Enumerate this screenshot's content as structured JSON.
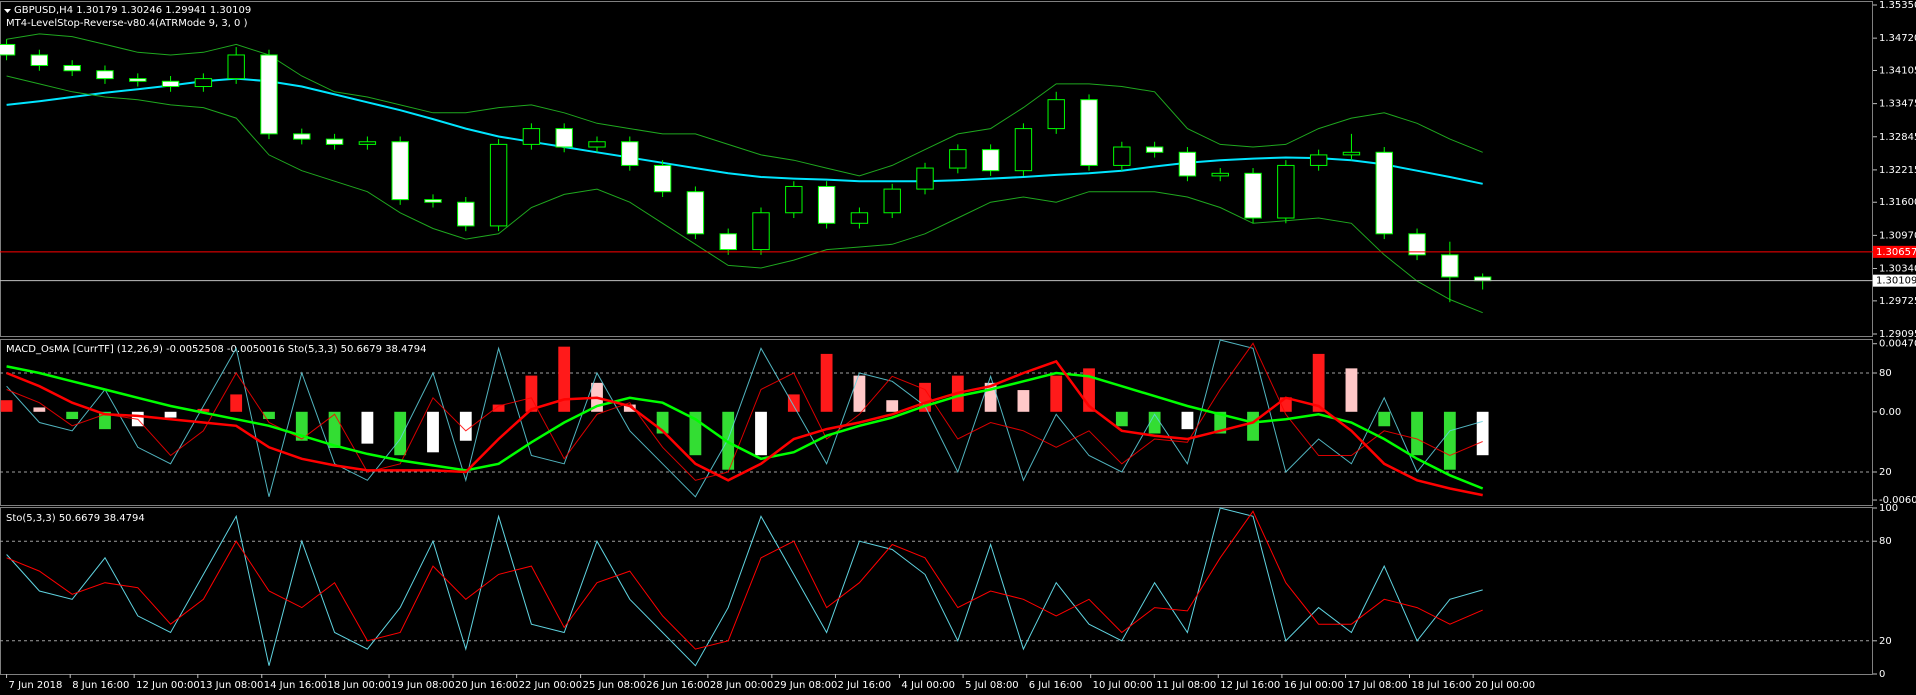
{
  "chart_data": [
    {
      "type": "candlestick",
      "title": "GBPUSD,H4  1.30179 1.30246 1.29941 1.30109",
      "subtitle": "MT4-LevelStop-Reverse-v80.4(ATRMode 9, 3, 0 )",
      "x": [
        0,
        1,
        2,
        3,
        4,
        5,
        6,
        7,
        8,
        9,
        10,
        11,
        12,
        13,
        14,
        15,
        16,
        17,
        18,
        19,
        20,
        21,
        22,
        23,
        24,
        25,
        26,
        27,
        28,
        29,
        30,
        31,
        32,
        33,
        34,
        35,
        36,
        37,
        38,
        39,
        40,
        41,
        42,
        43,
        44,
        45
      ],
      "open": [
        1.346,
        1.344,
        1.342,
        1.341,
        1.3395,
        1.339,
        1.338,
        1.3395,
        1.344,
        1.329,
        1.328,
        1.327,
        1.3275,
        1.3165,
        1.316,
        1.3115,
        1.327,
        1.33,
        1.3265,
        1.3275,
        1.323,
        1.318,
        1.31,
        1.307,
        1.314,
        1.319,
        1.312,
        1.314,
        1.3185,
        1.3225,
        1.326,
        1.322,
        1.33,
        1.3355,
        1.323,
        1.3265,
        1.3255,
        1.321,
        1.3215,
        1.313,
        1.323,
        1.325,
        1.3255,
        1.31,
        1.306,
        1.30179
      ],
      "high": [
        1.347,
        1.345,
        1.343,
        1.342,
        1.3405,
        1.34,
        1.3405,
        1.3455,
        1.345,
        1.33,
        1.329,
        1.3285,
        1.3285,
        1.3175,
        1.317,
        1.328,
        1.331,
        1.331,
        1.3285,
        1.3285,
        1.324,
        1.319,
        1.311,
        1.315,
        1.32,
        1.32,
        1.315,
        1.3195,
        1.3235,
        1.327,
        1.327,
        1.331,
        1.337,
        1.3365,
        1.3275,
        1.3275,
        1.3265,
        1.3225,
        1.3225,
        1.324,
        1.326,
        1.329,
        1.3265,
        1.311,
        1.3085,
        1.30246
      ],
      "low": [
        1.343,
        1.341,
        1.34,
        1.3385,
        1.338,
        1.337,
        1.337,
        1.3385,
        1.328,
        1.327,
        1.326,
        1.326,
        1.3155,
        1.315,
        1.3105,
        1.3105,
        1.326,
        1.3255,
        1.3255,
        1.322,
        1.317,
        1.309,
        1.306,
        1.306,
        1.313,
        1.311,
        1.311,
        1.313,
        1.3175,
        1.3215,
        1.321,
        1.321,
        1.329,
        1.322,
        1.322,
        1.3245,
        1.32,
        1.32,
        1.312,
        1.312,
        1.322,
        1.324,
        1.309,
        1.305,
        1.297,
        1.29941
      ],
      "close": [
        1.344,
        1.342,
        1.341,
        1.3395,
        1.339,
        1.338,
        1.3395,
        1.344,
        1.329,
        1.328,
        1.327,
        1.3275,
        1.3165,
        1.316,
        1.3115,
        1.327,
        1.33,
        1.3265,
        1.3275,
        1.323,
        1.318,
        1.31,
        1.307,
        1.314,
        1.319,
        1.312,
        1.314,
        1.3185,
        1.3225,
        1.326,
        1.322,
        1.33,
        1.3355,
        1.323,
        1.3265,
        1.3255,
        1.321,
        1.3215,
        1.313,
        1.323,
        1.325,
        1.3255,
        1.31,
        1.306,
        1.30179,
        1.30109
      ],
      "up_fill": "#000000",
      "down_fill": "#ffffff",
      "candle_color": "#00ff00",
      "series": [
        {
          "color": "#00e5ff",
          "width": 2,
          "values": [
            1.3345,
            1.3352,
            1.336,
            1.3368,
            1.3375,
            1.3382,
            1.339,
            1.3395,
            1.339,
            1.338,
            1.3365,
            1.335,
            1.3335,
            1.3318,
            1.33,
            1.3285,
            1.3275,
            1.3265,
            1.3255,
            1.3245,
            1.3235,
            1.3225,
            1.3215,
            1.3208,
            1.3205,
            1.3203,
            1.32,
            1.32,
            1.32,
            1.3202,
            1.3205,
            1.3208,
            1.3212,
            1.3215,
            1.322,
            1.3228,
            1.3235,
            1.324,
            1.3243,
            1.3245,
            1.3244,
            1.324,
            1.3232,
            1.322,
            1.3208,
            1.3195
          ]
        },
        {
          "color": "#1fa81f",
          "width": 1,
          "values": [
            1.347,
            1.348,
            1.3475,
            1.346,
            1.3445,
            1.344,
            1.3445,
            1.346,
            1.344,
            1.34,
            1.337,
            1.336,
            1.3345,
            1.333,
            1.333,
            1.334,
            1.3345,
            1.333,
            1.331,
            1.33,
            1.329,
            1.329,
            1.327,
            1.325,
            1.324,
            1.3225,
            1.321,
            1.323,
            1.326,
            1.329,
            1.33,
            1.334,
            1.3385,
            1.3385,
            1.338,
            1.337,
            1.33,
            1.327,
            1.3265,
            1.327,
            1.33,
            1.332,
            1.333,
            1.331,
            1.328,
            1.3255
          ]
        },
        {
          "color": "#1fa81f",
          "width": 1,
          "values": [
            1.34,
            1.3385,
            1.337,
            1.336,
            1.3355,
            1.3345,
            1.334,
            1.332,
            1.325,
            1.322,
            1.32,
            1.318,
            1.314,
            1.311,
            1.309,
            1.31,
            1.315,
            1.3175,
            1.3185,
            1.316,
            1.312,
            1.308,
            1.304,
            1.3035,
            1.305,
            1.307,
            1.3075,
            1.308,
            1.31,
            1.313,
            1.316,
            1.317,
            1.316,
            1.318,
            1.318,
            1.318,
            1.317,
            1.315,
            1.312,
            1.3125,
            1.313,
            1.312,
            1.306,
            1.301,
            1.2975,
            1.295
          ]
        }
      ],
      "hline": {
        "value": 1.30657,
        "color": "#ff0000"
      },
      "xlim": [
        -0.2,
        56.9
      ],
      "ylim": [
        1.29057,
        1.35407
      ],
      "yticks": [
        {
          "value": 1.3535,
          "label": "1.35350"
        },
        {
          "value": 1.3472,
          "label": "1.34720"
        },
        1.34105,
        1.33475,
        1.32845,
        1.32215,
        {
          "value": 1.316,
          "label": "1.31600"
        },
        {
          "value": 1.3097,
          "label": "1.30970"
        },
        {
          "value": 1.3034,
          "label": "1.30340"
        },
        1.29725,
        1.29095
      ]
    },
    {
      "type": "bar",
      "title": "MACD_OsMA [CurrTF] (12,26,9) -0.0052508 -0.0050016  Sto(5,3,3) 50.6679 38.4794",
      "x": [
        0,
        1,
        2,
        3,
        4,
        5,
        6,
        7,
        8,
        9,
        10,
        11,
        12,
        13,
        14,
        15,
        16,
        17,
        18,
        19,
        20,
        21,
        22,
        23,
        24,
        25,
        26,
        27,
        28,
        29,
        30,
        31,
        32,
        33,
        34,
        35,
        36,
        37,
        38,
        39,
        40,
        41,
        42,
        43,
        44,
        45
      ],
      "values": [
        0.0008,
        0.0003,
        -0.0005,
        -0.0012,
        -0.001,
        -0.0004,
        0.0002,
        0.0012,
        -0.0005,
        -0.002,
        -0.0025,
        -0.0022,
        -0.003,
        -0.0028,
        -0.002,
        0.0005,
        0.0025,
        0.0045,
        0.002,
        0.0005,
        -0.0015,
        -0.003,
        -0.004,
        -0.003,
        0.0012,
        0.004,
        0.0025,
        0.0008,
        0.002,
        0.0025,
        0.002,
        0.0015,
        0.0025,
        0.003,
        -0.001,
        -0.0015,
        -0.0012,
        -0.0015,
        -0.002,
        0.001,
        0.004,
        0.003,
        -0.001,
        -0.003,
        -0.004,
        -0.003
      ],
      "colors": {
        "positive_rising": "#ff1a1a",
        "positive_falling": "#ffc8c8",
        "negative_falling": "#33dd33",
        "negative_rising": "#ffffff"
      },
      "series": [
        {
          "color": "#00ff00",
          "axis": "y2",
          "values": [
            84,
            80,
            75,
            70,
            65,
            60,
            56,
            52,
            48,
            42,
            36,
            31,
            27,
            24,
            21,
            25,
            38,
            50,
            60,
            65,
            62,
            52,
            38,
            28,
            32,
            42,
            48,
            53,
            60,
            66,
            70,
            75,
            80,
            78,
            72,
            66,
            60,
            55,
            50,
            52,
            55,
            50,
            40,
            28,
            18,
            10
          ]
        },
        {
          "color": "#ff0000",
          "axis": "y2",
          "values": [
            80,
            72,
            62,
            55,
            54,
            52,
            50,
            48,
            35,
            28,
            24,
            21,
            21,
            21,
            20,
            40,
            58,
            64,
            65,
            60,
            45,
            25,
            15,
            25,
            40,
            46,
            50,
            55,
            62,
            68,
            72,
            80,
            87,
            60,
            45,
            42,
            40,
            45,
            50,
            65,
            60,
            45,
            25,
            15,
            10,
            6
          ]
        }
      ],
      "xlim": [
        -0.2,
        56.9
      ],
      "ylim": [
        -0.00644,
        0.00496
      ],
      "yticks": [
        0.004703,
        {
          "value": 0,
          "label": "0.00"
        },
        -0.006097
      ],
      "y2lim": [
        0,
        100
      ],
      "y2ticks": [
        80,
        20
      ]
    },
    {
      "type": "line",
      "title": "Sto(5,3,3) 50.6679 38.4794",
      "x": [
        0,
        1,
        2,
        3,
        4,
        5,
        6,
        7,
        8,
        9,
        10,
        11,
        12,
        13,
        14,
        15,
        16,
        17,
        18,
        19,
        20,
        21,
        22,
        23,
        24,
        25,
        26,
        27,
        28,
        29,
        30,
        31,
        32,
        33,
        34,
        35,
        36,
        37,
        38,
        39,
        40,
        41,
        42,
        43,
        44,
        45
      ],
      "series": [
        {
          "color": "#5fd3e0",
          "values": [
            72,
            50,
            45,
            70,
            35,
            25,
            60,
            95,
            5,
            80,
            25,
            15,
            40,
            80,
            15,
            95,
            30,
            25,
            80,
            45,
            25,
            5,
            40,
            95,
            60,
            25,
            80,
            75,
            60,
            20,
            78,
            15,
            55,
            30,
            20,
            55,
            25,
            100,
            95,
            20,
            40,
            25,
            65,
            20,
            45,
            50.6679
          ]
        },
        {
          "color": "#ff0000",
          "values": [
            70,
            62,
            48,
            55,
            52,
            30,
            45,
            80,
            50,
            40,
            55,
            20,
            25,
            65,
            45,
            60,
            65,
            28,
            55,
            62,
            35,
            15,
            20,
            70,
            80,
            40,
            55,
            78,
            70,
            40,
            50,
            45,
            35,
            45,
            25,
            40,
            38,
            70,
            98,
            55,
            30,
            30,
            45,
            40,
            30,
            38.4794
          ]
        }
      ],
      "xlim": [
        -0.2,
        56.9
      ],
      "ylim": [
        0,
        100
      ],
      "yticks": [
        100,
        80,
        20,
        0
      ],
      "xticks": [
        {
          "value": 0,
          "label": "7 Jun 2018"
        },
        {
          "value": 1.94,
          "label": "8 Jun 16:00"
        },
        {
          "value": 3.89,
          "label": "12 Jun 00:00"
        },
        {
          "value": 5.83,
          "label": "13 Jun 08:00"
        },
        {
          "value": 7.78,
          "label": "14 Jun 16:00"
        },
        {
          "value": 9.72,
          "label": "18 Jun 00:00"
        },
        {
          "value": 11.66,
          "label": "19 Jun 08:00"
        },
        {
          "value": 13.61,
          "label": "20 Jun 16:00"
        },
        {
          "value": 15.55,
          "label": "22 Jun 00:00"
        },
        {
          "value": 17.5,
          "label": "25 Jun 08:00"
        },
        {
          "value": 19.44,
          "label": "26 Jun 16:00"
        },
        {
          "value": 21.38,
          "label": "28 Jun 00:00"
        },
        {
          "value": 23.33,
          "label": "29 Jun 08:00"
        },
        {
          "value": 25.27,
          "label": "2 Jul 16:00"
        },
        {
          "value": 27.22,
          "label": "4 Jul 00:00"
        },
        {
          "value": 29.16,
          "label": "5 Jul 08:00"
        },
        {
          "value": 31.1,
          "label": "6 Jul 16:00"
        },
        {
          "value": 33.05,
          "label": "10 Jul 00:00"
        },
        {
          "value": 34.99,
          "label": "11 Jul 08:00"
        },
        {
          "value": 36.94,
          "label": "12 Jul 16:00"
        },
        {
          "value": 38.88,
          "label": "16 Jul 00:00"
        },
        {
          "value": 40.82,
          "label": "17 Jul 08:00"
        },
        {
          "value": 42.77,
          "label": "18 Jul 16:00"
        },
        {
          "value": 44.71,
          "label": "20 Jul 00:00"
        }
      ]
    }
  ]
}
